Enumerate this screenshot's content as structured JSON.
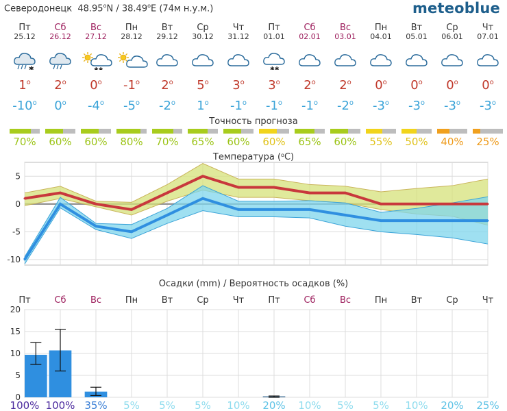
{
  "location": {
    "name": "Северодонецк",
    "lat": "48.95",
    "lat_hem": "N",
    "lon": "38.49",
    "lon_hem": "E",
    "alt": "(74м н.у.м.)"
  },
  "brand": "meteoblue",
  "days": [
    {
      "name": "Пт",
      "date": "25.12",
      "weekend": false,
      "icon": "rain-snow-icon",
      "max": "1",
      "min": "-10"
    },
    {
      "name": "Сб",
      "date": "26.12",
      "weekend": true,
      "icon": "rain-icon",
      "max": "2",
      "min": "0"
    },
    {
      "name": "Вс",
      "date": "27.12",
      "weekend": true,
      "icon": "sun-snow-icon",
      "max": "0",
      "min": "-4"
    },
    {
      "name": "Пн",
      "date": "28.12",
      "weekend": false,
      "icon": "partly-sunny-icon",
      "max": "-1",
      "min": "-5"
    },
    {
      "name": "Вт",
      "date": "29.12",
      "weekend": false,
      "icon": "cloud-icon",
      "max": "2",
      "min": "-2"
    },
    {
      "name": "Ср",
      "date": "30.12",
      "weekend": false,
      "icon": "cloud-icon",
      "max": "5",
      "min": "1"
    },
    {
      "name": "Чт",
      "date": "31.12",
      "weekend": false,
      "icon": "cloud-icon",
      "max": "3",
      "min": "-1"
    },
    {
      "name": "Пт",
      "date": "01.01",
      "weekend": false,
      "icon": "cloud-snow-icon",
      "max": "3",
      "min": "-1"
    },
    {
      "name": "Сб",
      "date": "02.01",
      "weekend": true,
      "icon": "cloud-icon",
      "max": "2",
      "min": "-1"
    },
    {
      "name": "Вс",
      "date": "03.01",
      "weekend": true,
      "icon": "cloud-icon",
      "max": "2",
      "min": "-2"
    },
    {
      "name": "Пн",
      "date": "04.01",
      "weekend": false,
      "icon": "cloud-icon",
      "max": "0",
      "min": "-3"
    },
    {
      "name": "Вт",
      "date": "05.01",
      "weekend": false,
      "icon": "cloud-icon",
      "max": "0",
      "min": "-3"
    },
    {
      "name": "Ср",
      "date": "06.01",
      "weekend": false,
      "icon": "cloud-icon",
      "max": "0",
      "min": "-3"
    },
    {
      "name": "Чт",
      "date": "07.01",
      "weekend": false,
      "icon": "cloud-icon",
      "max": "0",
      "min": "-3"
    }
  ],
  "accuracy": {
    "title": "Точность прогноза",
    "values": [
      "70%",
      "60%",
      "60%",
      "80%",
      "70%",
      "65%",
      "60%",
      "60%",
      "65%",
      "60%",
      "55%",
      "50%",
      "40%",
      "25%"
    ],
    "fractions": [
      0.7,
      0.6,
      0.6,
      0.8,
      0.7,
      0.65,
      0.6,
      0.6,
      0.65,
      0.6,
      0.55,
      0.5,
      0.4,
      0.25
    ],
    "colors": [
      "#a8cc1d",
      "#a8cc1d",
      "#a8cc1d",
      "#a8cc1d",
      "#a8cc1d",
      "#a8cc1d",
      "#a8cc1d",
      "#f1d41b",
      "#a8cc1d",
      "#a8cc1d",
      "#f1d41b",
      "#f1d41b",
      "#f0a01e",
      "#f0a01e"
    ]
  },
  "chart_data": [
    {
      "type": "line",
      "title": "Температура (°C)",
      "x": [
        "Пт 25.12",
        "Сб 26.12",
        "Вс 27.12",
        "Пн 28.12",
        "Вт 29.12",
        "Ср 30.12",
        "Чт 31.12",
        "Пт 01.01",
        "Сб 02.01",
        "Вс 03.01",
        "Пн 04.01",
        "Вт 05.01",
        "Ср 06.01",
        "Чт 07.01"
      ],
      "yticks": [
        5,
        0,
        -5,
        -10
      ],
      "ylim": [
        -11,
        7.5
      ],
      "series": [
        {
          "role": "max",
          "values": [
            1,
            2,
            0,
            -1,
            2,
            5,
            3,
            3,
            2,
            2,
            0,
            0,
            0,
            0
          ],
          "color": "#c8383c"
        },
        {
          "role": "max_upper",
          "values": [
            2,
            3.2,
            0.5,
            0.3,
            3.5,
            7.3,
            4.5,
            4.5,
            3.5,
            3.2,
            2.2,
            2.8,
            3.3,
            4.5
          ],
          "color": "#d5e27a"
        },
        {
          "role": "max_lower",
          "values": [
            -0.3,
            1,
            -0.5,
            -2,
            0.5,
            2.5,
            1.2,
            1.2,
            0.6,
            0.2,
            -1,
            -1.8,
            -2.2,
            -3.8
          ],
          "color": "#d5e27a"
        },
        {
          "role": "min",
          "values": [
            -10,
            0,
            -4,
            -5,
            -2,
            1,
            -1,
            -1,
            -1,
            -2,
            -3,
            -3,
            -3,
            -3
          ],
          "color": "#2f8fe0"
        },
        {
          "role": "min_upper",
          "values": [
            -9.5,
            1.2,
            -3.5,
            -3.7,
            -0.8,
            3.3,
            0.5,
            0.5,
            0.6,
            0.2,
            -1.5,
            -0.8,
            0.2,
            1.3
          ],
          "color": "#8fdcee"
        },
        {
          "role": "min_lower",
          "values": [
            -10.8,
            -0.7,
            -4.6,
            -6.2,
            -3.5,
            -1.2,
            -2.3,
            -2.3,
            -2.5,
            -4,
            -5,
            -5.5,
            -6.1,
            -7.2
          ],
          "color": "#8fdcee"
        }
      ]
    },
    {
      "type": "bar",
      "title": "Осадки (mm) / Вероятность осадков (%)",
      "categories": [
        "Пт",
        "Сб",
        "Вс",
        "Пн",
        "Вт",
        "Ср",
        "Чт",
        "Пт",
        "Сб",
        "Вс",
        "Пн",
        "Вт",
        "Ср",
        "Чт"
      ],
      "weekend": [
        false,
        true,
        true,
        false,
        false,
        false,
        false,
        false,
        true,
        true,
        false,
        false,
        false,
        false
      ],
      "values": [
        9.7,
        10.7,
        1.3,
        0,
        0,
        0,
        0,
        0.2,
        0,
        0,
        0,
        0,
        0,
        0
      ],
      "range_low": [
        7.5,
        6,
        0.4,
        0,
        0,
        0,
        0,
        0,
        0,
        0,
        0,
        0,
        0,
        0
      ],
      "range_high": [
        12.5,
        15.5,
        2.3,
        0,
        0,
        0,
        0,
        0.3,
        0,
        0,
        0,
        0,
        0,
        0
      ],
      "probability": [
        "100%",
        "100%",
        "35%",
        "5%",
        "5%",
        "5%",
        "10%",
        "20%",
        "10%",
        "5%",
        "5%",
        "10%",
        "20%",
        "25%"
      ],
      "probability_colors": [
        "#4b2a9e",
        "#4b2a9e",
        "#3a7fd6",
        "#8fdcee",
        "#8fdcee",
        "#8fdcee",
        "#8fdcee",
        "#5fc3e6",
        "#8fdcee",
        "#8fdcee",
        "#8fdcee",
        "#8fdcee",
        "#5fc3e6",
        "#5fc3e6"
      ],
      "yticks": [
        20,
        15,
        10,
        5,
        0
      ],
      "ylim": [
        0,
        20
      ]
    }
  ]
}
